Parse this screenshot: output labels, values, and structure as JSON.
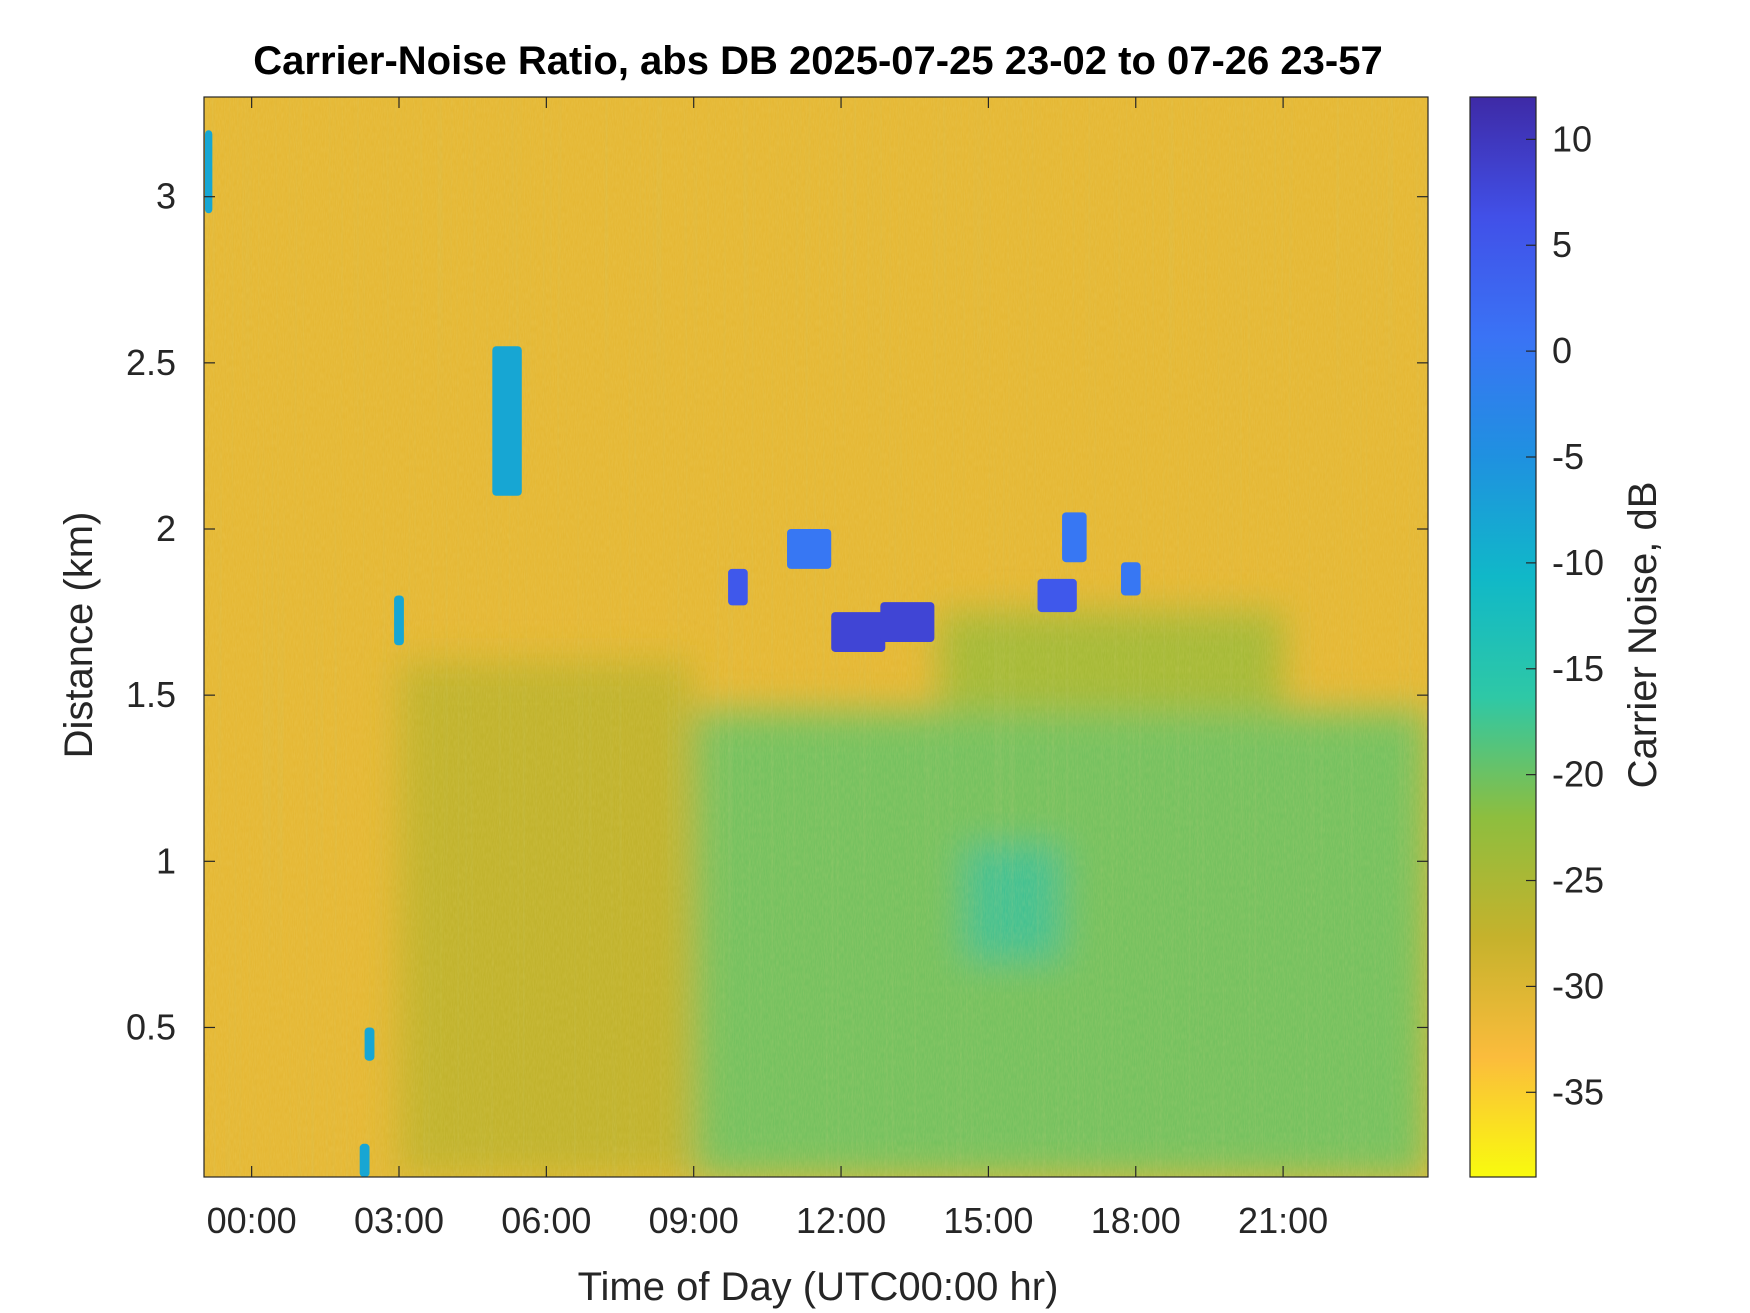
{
  "chart_data": {
    "type": "heatmap",
    "title": "Carrier-Noise Ratio, abs DB 2025-07-25 23-02 to 07-26 23-57",
    "xlabel": "Time of Day (UTC00:00 hr)",
    "ylabel": "Distance (km)",
    "colorbar_label": "Carrier Noise, dB",
    "x_ticks": [
      {
        "value": 0,
        "label": "00:00"
      },
      {
        "value": 3,
        "label": "03:00"
      },
      {
        "value": 6,
        "label": "06:00"
      },
      {
        "value": 9,
        "label": "09:00"
      },
      {
        "value": 12,
        "label": "12:00"
      },
      {
        "value": 15,
        "label": "15:00"
      },
      {
        "value": 18,
        "label": "18:00"
      },
      {
        "value": 21,
        "label": "21:00"
      }
    ],
    "y_ticks": [
      {
        "value": 0.5,
        "label": "0.5"
      },
      {
        "value": 1,
        "label": "1"
      },
      {
        "value": 1.5,
        "label": "1.5"
      },
      {
        "value": 2,
        "label": "2"
      },
      {
        "value": 2.5,
        "label": "2.5"
      },
      {
        "value": 3,
        "label": "3"
      }
    ],
    "colorbar_ticks": [
      {
        "value": 10,
        "label": "10"
      },
      {
        "value": 5,
        "label": "5"
      },
      {
        "value": 0,
        "label": "0"
      },
      {
        "value": -5,
        "label": "-5"
      },
      {
        "value": -10,
        "label": "-10"
      },
      {
        "value": -15,
        "label": "-15"
      },
      {
        "value": -20,
        "label": "-20"
      },
      {
        "value": -25,
        "label": "-25"
      },
      {
        "value": -30,
        "label": "-30"
      },
      {
        "value": -35,
        "label": "-35"
      }
    ],
    "xlim": [
      -0.97,
      23.95
    ],
    "ylim": [
      0.05,
      3.3
    ],
    "clim": [
      -39,
      12
    ],
    "colormap": "parula (reversed)",
    "grid": false,
    "colors": {
      "colormap_stops": [
        "#f9fb0e",
        "#fbbc3c",
        "#c5b22c",
        "#8dbe3f",
        "#2ec8a6",
        "#10b8c8",
        "#1f91e0",
        "#3a73f5",
        "#4150e8",
        "#3e2aa6"
      ],
      "background_level": "#f8b832"
    },
    "background_level_db": -31,
    "regions": [
      {
        "name": "lower boundary layer (green)",
        "x": [
          9,
          23.95
        ],
        "y": [
          0.05,
          1.45
        ],
        "value_db": -20
      },
      {
        "name": "transition layer (olive)",
        "x": [
          3,
          9
        ],
        "y": [
          0.05,
          1.6
        ],
        "value_db": -27
      },
      {
        "name": "elevated turbulent layer",
        "x": [
          14,
          21
        ],
        "y": [
          1.45,
          1.75
        ],
        "value_db": -24
      },
      {
        "name": "core minimum",
        "x": [
          14.5,
          16.5
        ],
        "y": [
          0.7,
          1.05
        ],
        "value_db": -13
      }
    ],
    "features": [
      {
        "name": "cloud echo",
        "x": [
          9.7,
          10.1
        ],
        "y": [
          1.77,
          1.88
        ],
        "value_db": 5
      },
      {
        "name": "cloud echo",
        "x": [
          10.9,
          11.8
        ],
        "y": [
          1.88,
          2.0
        ],
        "value_db": 0
      },
      {
        "name": "cloud echo",
        "x": [
          11.8,
          12.9
        ],
        "y": [
          1.63,
          1.75
        ],
        "value_db": 8
      },
      {
        "name": "cloud echo",
        "x": [
          12.8,
          13.9
        ],
        "y": [
          1.66,
          1.78
        ],
        "value_db": 8
      },
      {
        "name": "cloud echo",
        "x": [
          16.0,
          16.8
        ],
        "y": [
          1.75,
          1.85
        ],
        "value_db": 5
      },
      {
        "name": "cloud echo",
        "x": [
          16.5,
          17.0
        ],
        "y": [
          1.9,
          2.05
        ],
        "value_db": 0
      },
      {
        "name": "cloud echo",
        "x": [
          17.7,
          18.1
        ],
        "y": [
          1.8,
          1.9
        ],
        "value_db": 0
      },
      {
        "name": "aerosol streak",
        "x": [
          4.9,
          5.5
        ],
        "y": [
          2.1,
          2.55
        ],
        "value_db": -8
      },
      {
        "name": "aerosol streak",
        "x": [
          2.9,
          3.1
        ],
        "y": [
          1.65,
          1.8
        ],
        "value_db": -8
      },
      {
        "name": "surface echo",
        "x": [
          2.2,
          2.4
        ],
        "y": [
          0.05,
          0.15
        ],
        "value_db": -8
      },
      {
        "name": "surface echo",
        "x": [
          2.3,
          2.5
        ],
        "y": [
          0.4,
          0.5
        ],
        "value_db": -8
      },
      {
        "name": "edge echo",
        "x": [
          -0.95,
          -0.8
        ],
        "y": [
          2.95,
          3.2
        ],
        "value_db": -8
      }
    ]
  }
}
